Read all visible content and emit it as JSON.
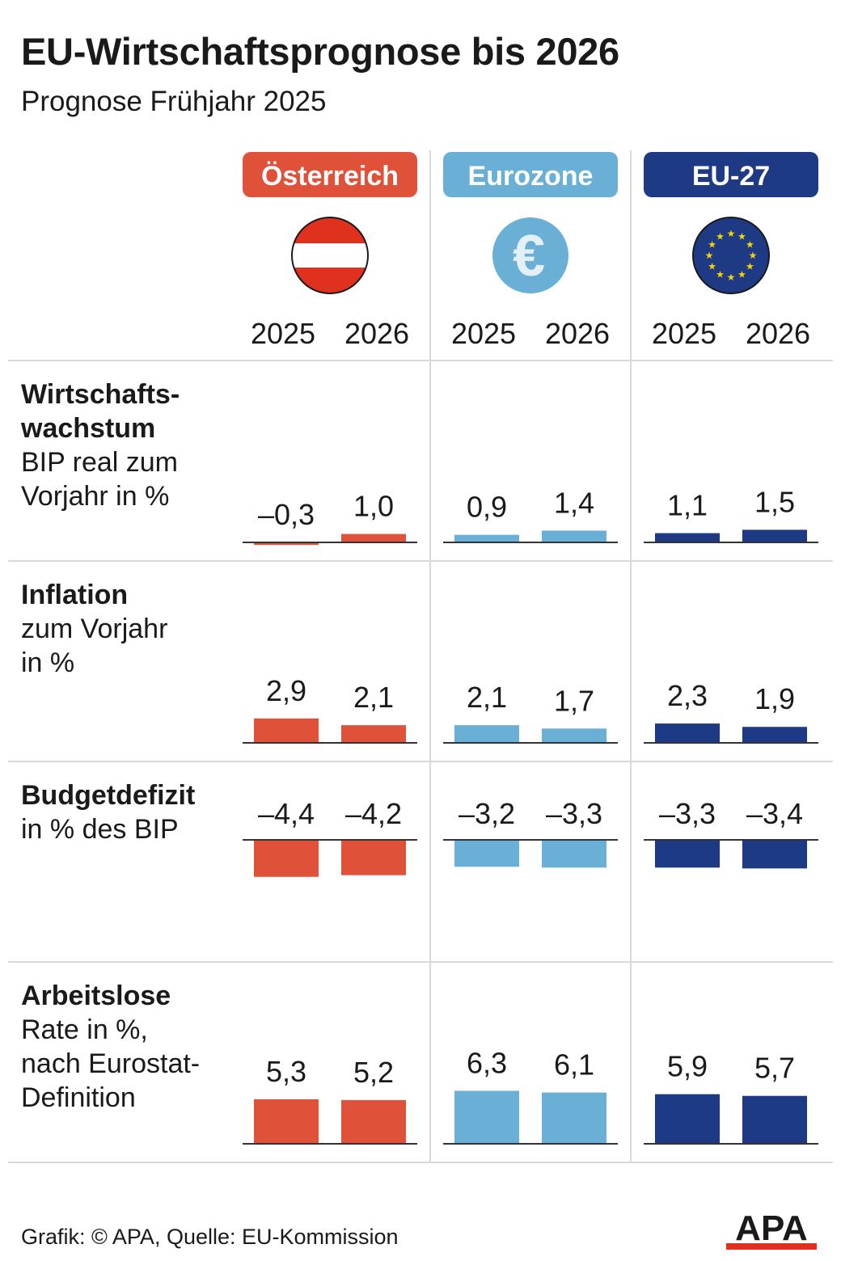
{
  "title": "EU-Wirtschaftsprognose bis 2026",
  "subtitle": "Prognose Frühjahr 2025",
  "footer": {
    "source": "Grafik: © APA, Quelle: EU-Kommission",
    "logo": "APA"
  },
  "colors": {
    "oesterreich": "#e05139",
    "eurozone": "#6aafd6",
    "eu27": "#1f3a85",
    "austria_red": "#e0301e",
    "eu_star": "#f5d400",
    "grid": "#d9d9d9",
    "axis": "#333333"
  },
  "chart_data": {
    "type": "bar",
    "years": [
      "2025",
      "2026"
    ],
    "groups": [
      {
        "key": "oesterreich",
        "label": "Österreich",
        "icon": "austria-flag-icon"
      },
      {
        "key": "eurozone",
        "label": "Eurozone",
        "icon": "euro-icon",
        "icon_text": "€"
      },
      {
        "key": "eu27",
        "label": "EU-27",
        "icon": "eu-flag-icon"
      }
    ],
    "panels": [
      {
        "key": "wachstum",
        "title_lines": [
          "Wirtschafts-",
          "wachstum"
        ],
        "desc_lines": [
          "BIP real zum",
          "Vorjahr in %"
        ],
        "series": {
          "oesterreich": [
            {
              "value": -0.3,
              "label": "–0,3"
            },
            {
              "value": 1.0,
              "label": "1,0"
            }
          ],
          "eurozone": [
            {
              "value": 0.9,
              "label": "0,9"
            },
            {
              "value": 1.4,
              "label": "1,4"
            }
          ],
          "eu27": [
            {
              "value": 1.1,
              "label": "1,1"
            },
            {
              "value": 1.5,
              "label": "1,5"
            }
          ]
        }
      },
      {
        "key": "inflation",
        "title_lines": [
          "Inflation"
        ],
        "desc_lines": [
          "zum Vorjahr",
          "in %"
        ],
        "series": {
          "oesterreich": [
            {
              "value": 2.9,
              "label": "2,9"
            },
            {
              "value": 2.1,
              "label": "2,1"
            }
          ],
          "eurozone": [
            {
              "value": 2.1,
              "label": "2,1"
            },
            {
              "value": 1.7,
              "label": "1,7"
            }
          ],
          "eu27": [
            {
              "value": 2.3,
              "label": "2,3"
            },
            {
              "value": 1.9,
              "label": "1,9"
            }
          ]
        }
      },
      {
        "key": "budgetdefizit",
        "title_lines": [
          "Budgetdefizit"
        ],
        "desc_lines": [
          "in % des BIP"
        ],
        "series": {
          "oesterreich": [
            {
              "value": -4.4,
              "label": "–4,4"
            },
            {
              "value": -4.2,
              "label": "–4,2"
            }
          ],
          "eurozone": [
            {
              "value": -3.2,
              "label": "–3,2"
            },
            {
              "value": -3.3,
              "label": "–3,3"
            }
          ],
          "eu27": [
            {
              "value": -3.3,
              "label": "–3,3"
            },
            {
              "value": -3.4,
              "label": "–3,4"
            }
          ]
        }
      },
      {
        "key": "arbeitslose",
        "title_lines": [
          "Arbeitslose"
        ],
        "desc_lines": [
          "Rate in %,",
          "nach Eurostat-",
          "Definition"
        ],
        "series": {
          "oesterreich": [
            {
              "value": 5.3,
              "label": "5,3"
            },
            {
              "value": 5.2,
              "label": "5,2"
            }
          ],
          "eurozone": [
            {
              "value": 6.3,
              "label": "6,3"
            },
            {
              "value": 6.1,
              "label": "6,1"
            }
          ],
          "eu27": [
            {
              "value": 5.9,
              "label": "5,9"
            },
            {
              "value": 5.7,
              "label": "5,7"
            }
          ]
        }
      }
    ]
  }
}
